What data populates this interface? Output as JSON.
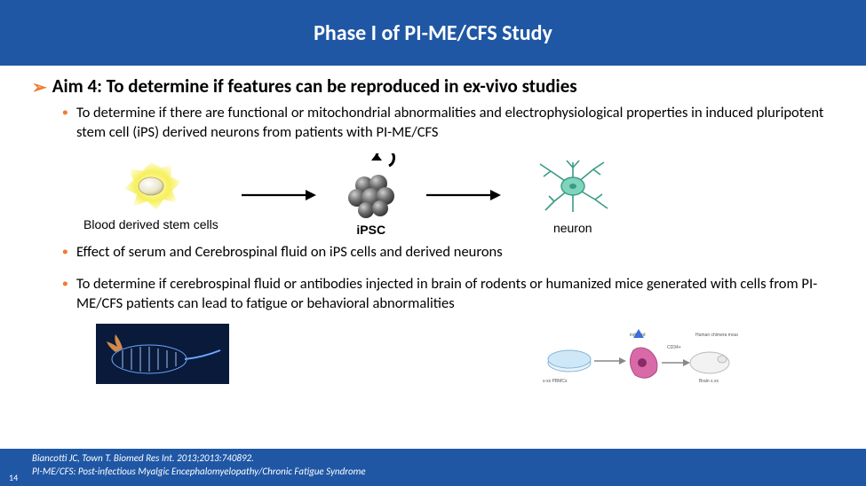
{
  "colors": {
    "blue": "#1f57a5",
    "orange": "#ed7d31",
    "black": "#000000",
    "white": "#ffffff",
    "stem_glow": "#f7f05a",
    "stem_core": "#e8e4c8",
    "ipsc": "#5a5a5a",
    "neuron_body": "#7fd4bd",
    "neuron_edge": "#3a9b82",
    "rodent_bg": "#0a1a3a",
    "rodent_fg": "#6aa8ff"
  },
  "title": "Phase I of PI-ME/CFS Study",
  "aim": {
    "bullet": "➢",
    "text": "Aim 4: To determine if features can be reproduced in ex-vivo studies"
  },
  "bullets": {
    "b1": "To determine if there are functional or mitochondrial abnormalities and electrophysiological properties in induced pluripotent stem cell (iPS) derived neurons from patients with PI-ME/CFS",
    "b2": "Effect of serum and Cerebrospinal fluid on iPS cells and derived neurons",
    "b3": "To determine if cerebrospinal fluid or antibodies injected in brain of rodents or humanized mice generated with cells from PI-ME/CFS patients can lead to fatigue or behavioral abnormalities"
  },
  "diagram": {
    "stem_label": "Blood derived stem cells",
    "ipsc_label": "iPSC",
    "neuron_label": "neuron"
  },
  "footer": {
    "ref1": "Biancotti JC, Town T. Biomed Res Int. 2013;2013:740892.",
    "ref2": "PI-ME/CFS: Post-infectious Myalgic Encephalomyelopathy/Chronic Fatigue Syndrome"
  },
  "page_number": "14"
}
